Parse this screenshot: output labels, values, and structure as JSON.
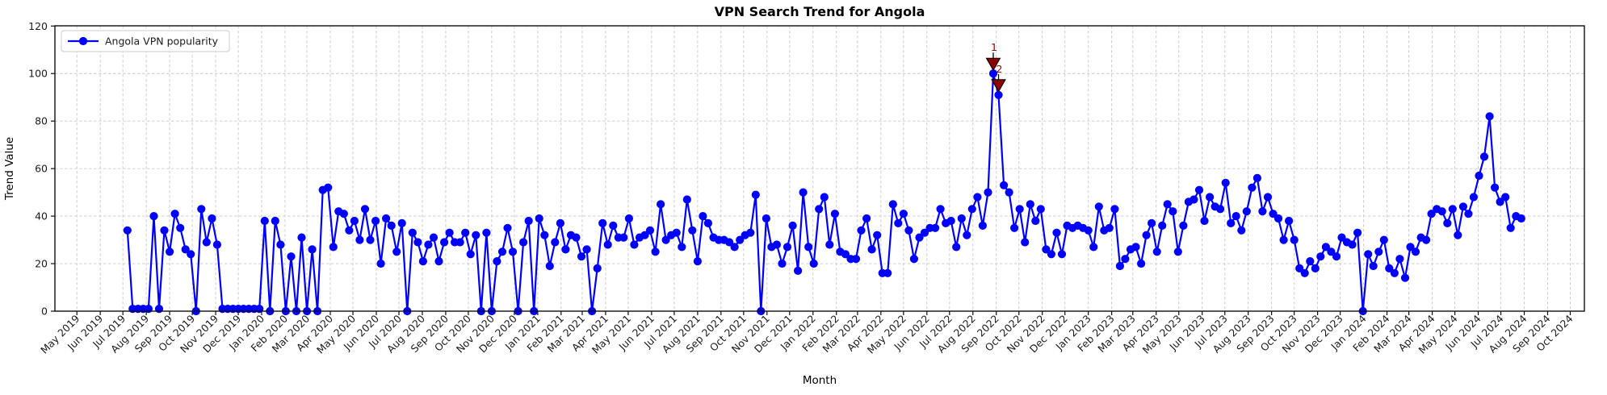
{
  "figure": {
    "title": "VPN Search Trend for Angola",
    "background": "#ffffff"
  },
  "chart_data": {
    "type": "line",
    "title": "VPN Search Trend for Angola",
    "xlabel": "Month",
    "ylabel": "Trend Value",
    "grid": true,
    "legend_position": "upper left",
    "ylim": [
      0,
      120
    ],
    "y_ticks": [
      0,
      20,
      40,
      60,
      80,
      100,
      120
    ],
    "x_tick_labels": [
      "May 2019",
      "Jun 2019",
      "Jul 2019",
      "Aug 2019",
      "Sep 2019",
      "Oct 2019",
      "Nov 2019",
      "Dec 2019",
      "Jan 2020",
      "Feb 2020",
      "Mar 2020",
      "Apr 2020",
      "May 2020",
      "Jun 2020",
      "Jul 2020",
      "Aug 2020",
      "Sep 2020",
      "Oct 2020",
      "Nov 2020",
      "Dec 2020",
      "Jan 2021",
      "Feb 2021",
      "Mar 2021",
      "Apr 2021",
      "May 2021",
      "Jun 2021",
      "Jul 2021",
      "Aug 2021",
      "Sep 2021",
      "Oct 2021",
      "Nov 2021",
      "Dec 2021",
      "Jan 2022",
      "Feb 2022",
      "Mar 2022",
      "Apr 2022",
      "May 2022",
      "Jun 2022",
      "Jul 2022",
      "Aug 2022",
      "Sep 2022",
      "Oct 2022",
      "Nov 2022",
      "Dec 2022",
      "Jan 2023",
      "Feb 2023",
      "Mar 2023",
      "Apr 2023",
      "May 2023",
      "Jun 2023",
      "Jul 2023",
      "Aug 2023",
      "Sep 2023",
      "Oct 2023",
      "Nov 2023",
      "Dec 2023",
      "Jan 2024",
      "Feb 2024",
      "Mar 2024",
      "Apr 2024",
      "May 2024",
      "Jun 2024",
      "Jul 2024",
      "Aug 2024",
      "Sep 2024",
      "Oct 2024"
    ],
    "series": [
      {
        "name": "Angola VPN popularity",
        "color": "#0000ff",
        "start_week": "2019-07-07",
        "interval_days": 7,
        "values": [
          34,
          1,
          1,
          1,
          1,
          40,
          1,
          34,
          25,
          41,
          35,
          26,
          24,
          0,
          43,
          29,
          39,
          28,
          1,
          1,
          1,
          1,
          1,
          1,
          1,
          1,
          38,
          0,
          38,
          28,
          0,
          23,
          0,
          31,
          0,
          26,
          0,
          51,
          52,
          27,
          42,
          41,
          34,
          38,
          30,
          43,
          30,
          38,
          20,
          39,
          36,
          25,
          37,
          0,
          33,
          29,
          21,
          28,
          31,
          21,
          29,
          33,
          29,
          29,
          33,
          24,
          32,
          0,
          33,
          0,
          21,
          25,
          35,
          25,
          0,
          29,
          38,
          0,
          39,
          32,
          19,
          29,
          37,
          26,
          32,
          31,
          23,
          26,
          0,
          18,
          37,
          28,
          36,
          31,
          31,
          39,
          28,
          31,
          32,
          34,
          25,
          45,
          30,
          32,
          33,
          27,
          47,
          34,
          21,
          40,
          37,
          31,
          30,
          30,
          29,
          27,
          30,
          32,
          33,
          49,
          0,
          39,
          27,
          28,
          20,
          27,
          36,
          17,
          50,
          27,
          20,
          43,
          48,
          28,
          41,
          25,
          24,
          22,
          22,
          34,
          39,
          26,
          32,
          16,
          16,
          45,
          37,
          41,
          34,
          22,
          31,
          33,
          35,
          35,
          43,
          37,
          38,
          27,
          39,
          32,
          43,
          48,
          36,
          50,
          100,
          91,
          53,
          50,
          35,
          43,
          29,
          45,
          38,
          43,
          26,
          24,
          33,
          24,
          36,
          35,
          36,
          35,
          34,
          27,
          44,
          34,
          35,
          43,
          19,
          22,
          26,
          27,
          20,
          32,
          37,
          25,
          36,
          45,
          42,
          25,
          36,
          46,
          47,
          51,
          38,
          48,
          44,
          43,
          54,
          37,
          40,
          34,
          42,
          52,
          56,
          42,
          48,
          41,
          39,
          30,
          38,
          30,
          18,
          16,
          21,
          18,
          23,
          27,
          25,
          23,
          31,
          29,
          28,
          33,
          0,
          24,
          19,
          25,
          30,
          18,
          16,
          22,
          14,
          27,
          25,
          31,
          30,
          41,
          43,
          42,
          37,
          43,
          32,
          44,
          41,
          48,
          57,
          65,
          82,
          52,
          46,
          48,
          35,
          40,
          39
        ]
      }
    ],
    "annotations": [
      {
        "label": "1",
        "week_index": 164,
        "value": 100
      },
      {
        "label": "2",
        "week_index": 165,
        "value": 91
      }
    ]
  },
  "colors": {
    "line": "#0000ff",
    "annotation_marker": "#8b0000",
    "annotation_text": "#8b0000",
    "grid": "#c9c9c9",
    "spine": "#0f0f0f",
    "tick_text": "#1a1a1a"
  }
}
